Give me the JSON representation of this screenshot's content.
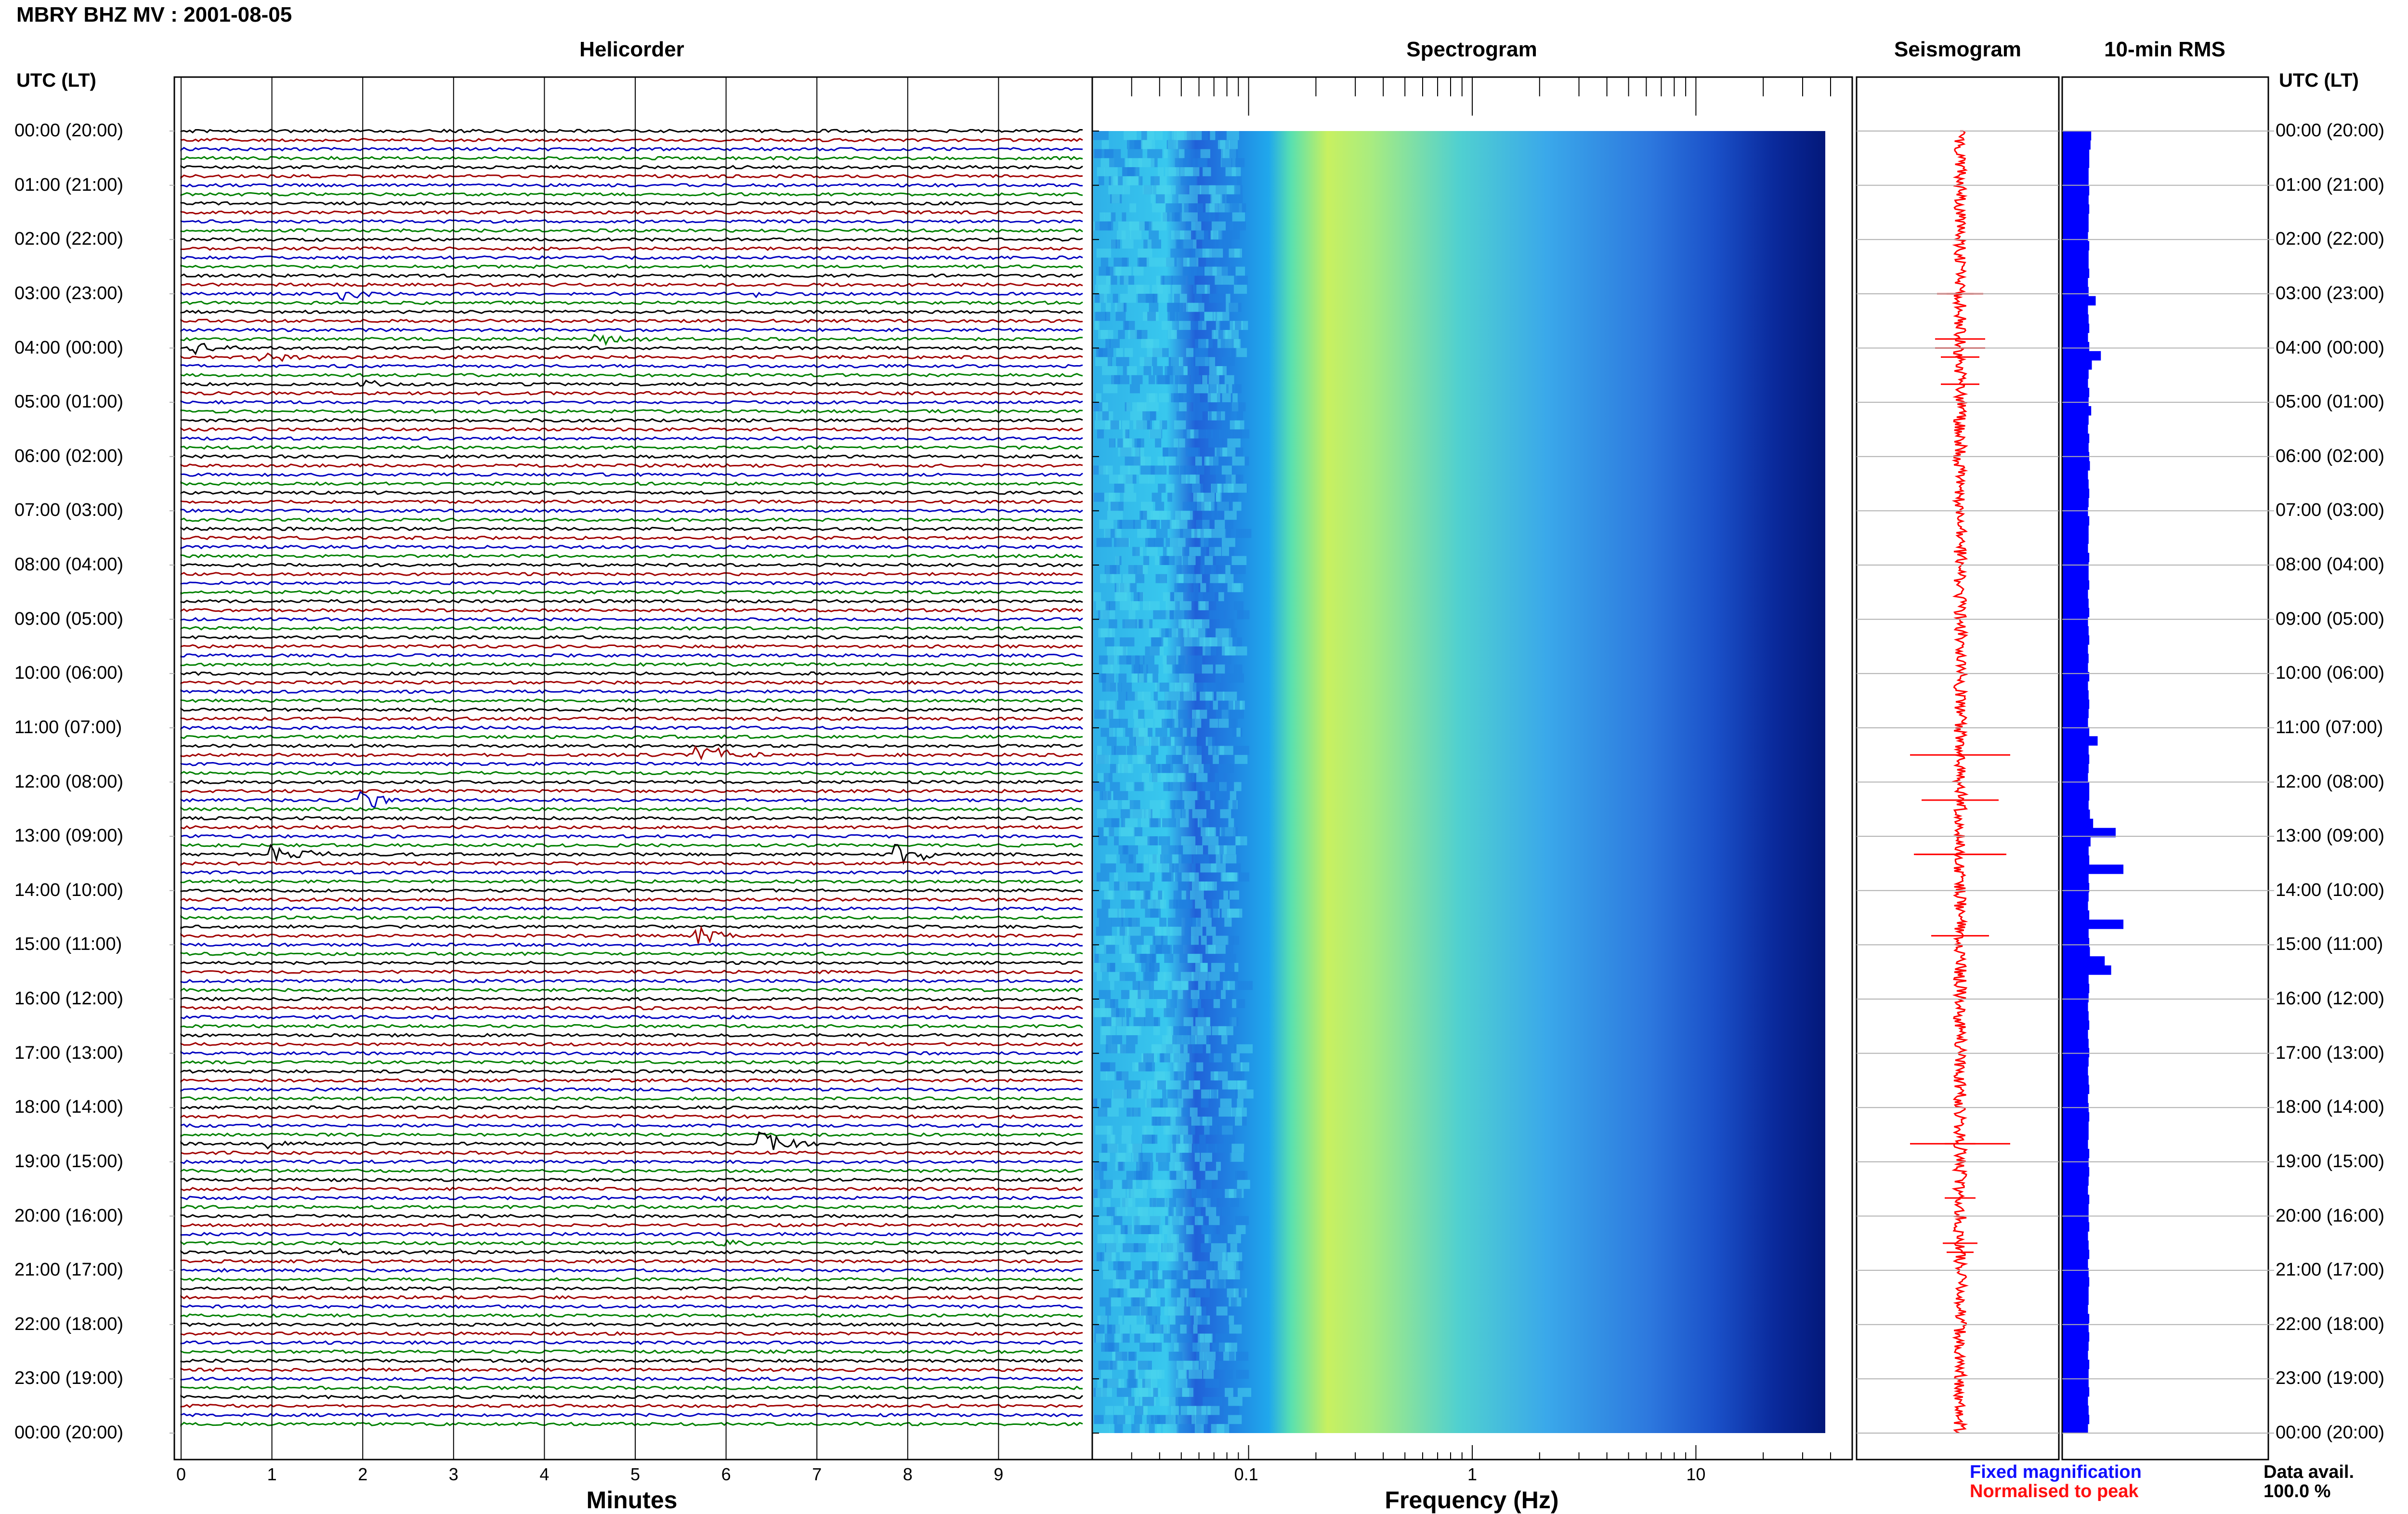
{
  "title": "MBRY BHZ MV : 2001-08-05",
  "panels": {
    "helicorder": "Helicorder",
    "spectrogram": "Spectrogram",
    "seismogram": "Seismogram",
    "rms": "10-min RMS"
  },
  "y_axis_label": "UTC (LT)",
  "x_labels": {
    "helicorder": "Minutes",
    "spectrogram": "Frequency (Hz)"
  },
  "legend": {
    "fixed": "Fixed magnification",
    "normalised": "Normalised to peak",
    "fixed_color": "#1010ff",
    "normalised_color": "#ff1010"
  },
  "data_avail": {
    "label": "Data avail.",
    "value": "100.0 %"
  },
  "colors": {
    "trace_cycle": [
      "#000000",
      "#a00000",
      "#0000c0",
      "#008000"
    ],
    "rms_bar": "#0000ff",
    "seismogram": "#ff0000"
  },
  "chart_data": [
    {
      "type": "line",
      "name": "helicorder",
      "xlabel": "Minutes",
      "xticks": [
        "0",
        "1",
        "2",
        "3",
        "4",
        "5",
        "6",
        "7",
        "8",
        "9"
      ],
      "xlim": [
        0,
        10
      ],
      "time_labels": [
        "00:00 (20:00)",
        "01:00 (21:00)",
        "02:00 (22:00)",
        "03:00 (23:00)",
        "04:00 (00:00)",
        "05:00 (01:00)",
        "06:00 (02:00)",
        "07:00 (03:00)",
        "08:00 (04:00)",
        "09:00 (05:00)",
        "10:00 (06:00)",
        "11:00 (07:00)",
        "12:00 (08:00)",
        "13:00 (09:00)",
        "14:00 (10:00)",
        "15:00 (11:00)",
        "16:00 (12:00)",
        "17:00 (13:00)",
        "18:00 (14:00)",
        "19:00 (15:00)",
        "20:00 (16:00)",
        "21:00 (17:00)",
        "22:00 (18:00)",
        "23:00 (19:00)",
        "00:00 (20:00)"
      ],
      "rows_per_hour": 6,
      "events": [
        {
          "row": 18,
          "minute": 1.8,
          "amp": 1.2
        },
        {
          "row": 18,
          "minute": 6.3,
          "amp": 0.7
        },
        {
          "row": 24,
          "minute": 0.1,
          "amp": 1.3
        },
        {
          "row": 25,
          "minute": 0.9,
          "amp": 1.0
        },
        {
          "row": 28,
          "minute": 2.0,
          "amp": 1.0
        },
        {
          "row": 23,
          "minute": 4.6,
          "amp": 1.3
        },
        {
          "row": 69,
          "minute": 5.7,
          "amp": 2.6
        },
        {
          "row": 74,
          "minute": 2.0,
          "amp": 2.0
        },
        {
          "row": 80,
          "minute": 1.0,
          "amp": 2.4
        },
        {
          "row": 80,
          "minute": 7.9,
          "amp": 2.3
        },
        {
          "row": 89,
          "minute": 5.7,
          "amp": 1.5
        },
        {
          "row": 112,
          "minute": 6.4,
          "amp": 2.6
        },
        {
          "row": 112,
          "minute": 1.0,
          "amp": 0.8
        },
        {
          "row": 118,
          "minute": 5.8,
          "amp": 0.8
        },
        {
          "row": 123,
          "minute": 5.9,
          "amp": 0.9
        },
        {
          "row": 124,
          "minute": 1.8,
          "amp": 0.7
        }
      ]
    },
    {
      "type": "heatmap",
      "name": "spectrogram",
      "xlabel": "Frequency (Hz)",
      "xscale": "log",
      "xticks": [
        "0.1",
        "1",
        "10"
      ],
      "xlim": [
        0.02,
        50
      ]
    },
    {
      "type": "line",
      "name": "seismogram"
    },
    {
      "type": "bar",
      "name": "10-min RMS",
      "values": [
        0.45,
        0.44,
        0.42,
        0.42,
        0.41,
        0.41,
        0.42,
        0.41,
        0.42,
        0.41,
        0.41,
        0.4,
        0.42,
        0.41,
        0.41,
        0.42,
        0.4,
        0.41,
        0.52,
        0.4,
        0.41,
        0.42,
        0.4,
        0.42,
        0.6,
        0.46,
        0.41,
        0.4,
        0.42,
        0.41,
        0.45,
        0.41,
        0.4,
        0.42,
        0.41,
        0.42,
        0.43,
        0.4,
        0.41,
        0.42,
        0.41,
        0.4,
        0.42,
        0.41,
        0.41,
        0.4,
        0.42,
        0.41,
        0.41,
        0.42,
        0.4,
        0.41,
        0.42,
        0.4,
        0.41,
        0.42,
        0.4,
        0.41,
        0.4,
        0.42,
        0.4,
        0.41,
        0.42,
        0.41,
        0.4,
        0.42,
        0.55,
        0.41,
        0.42,
        0.41,
        0.4,
        0.42,
        0.42,
        0.41,
        0.43,
        0.48,
        0.83,
        0.44,
        0.41,
        0.42,
        0.95,
        0.41,
        0.42,
        0.41,
        0.4,
        0.42,
        0.95,
        0.41,
        0.42,
        0.43,
        0.66,
        0.76,
        0.41,
        0.42,
        0.41,
        0.4,
        0.41,
        0.42,
        0.4,
        0.41,
        0.42,
        0.41,
        0.4,
        0.41,
        0.42,
        0.4,
        0.41,
        0.42,
        0.41,
        0.41,
        0.4,
        0.42,
        0.41,
        0.42,
        0.41,
        0.4,
        0.42,
        0.41,
        0.41,
        0.42,
        0.4,
        0.41,
        0.42,
        0.4,
        0.41,
        0.42,
        0.41,
        0.41,
        0.4,
        0.42,
        0.41,
        0.42,
        0.41,
        0.4,
        0.42,
        0.41,
        0.41,
        0.42,
        0.4,
        0.41,
        0.42,
        0.4
      ]
    }
  ]
}
